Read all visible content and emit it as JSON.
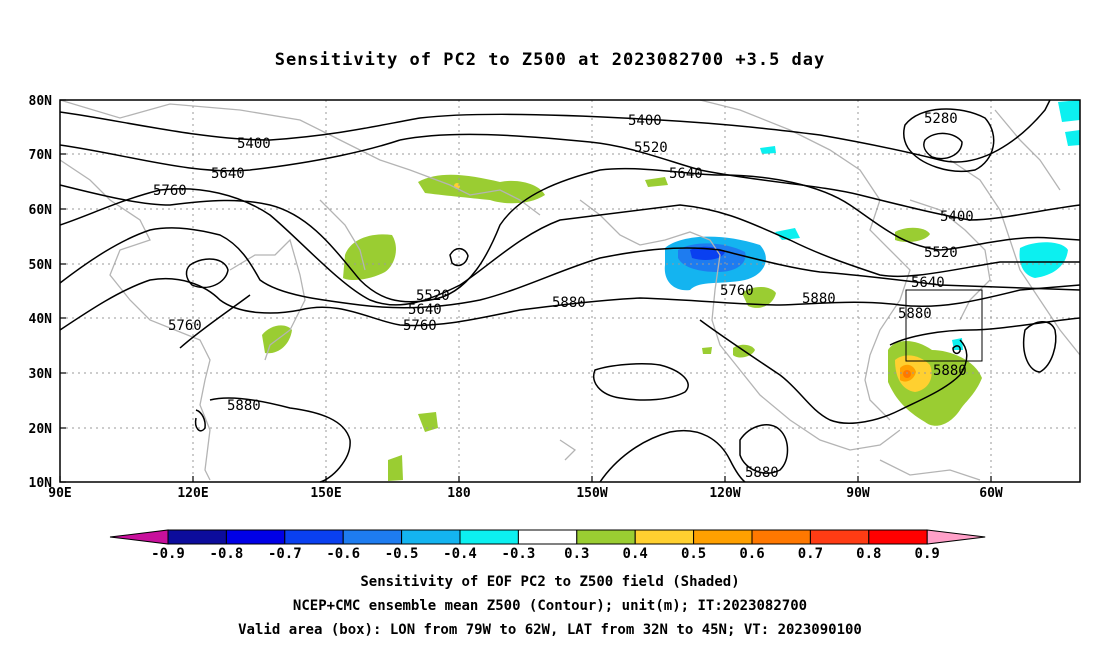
{
  "title": "Sensitivity of PC2 to Z500 at 2023082700 +3.5 day",
  "lat_labels": [
    "80N",
    "70N",
    "60N",
    "50N",
    "40N",
    "30N",
    "20N",
    "10N"
  ],
  "lon_labels": [
    "90E",
    "120E",
    "150E",
    "180",
    "150W",
    "120W",
    "90W",
    "60W"
  ],
  "contour_labels": [
    "5400",
    "5280",
    "5400",
    "5520",
    "5400",
    "5640",
    "5520",
    "5760",
    "5640",
    "5640",
    "5520",
    "5880",
    "5640",
    "5760",
    "5880",
    "5760",
    "5760",
    "5880",
    "5880",
    "5880"
  ],
  "colorbar": {
    "labels": [
      "-0.9",
      "-0.8",
      "-0.7",
      "-0.6",
      "-0.5",
      "-0.4",
      "-0.3",
      "0.3",
      "0.4",
      "0.5",
      "0.6",
      "0.7",
      "0.8",
      "0.9"
    ],
    "colors": [
      "#c8109c",
      "#0c0c9c",
      "#0000e6",
      "#0a40f0",
      "#1e7cf0",
      "#14b4f0",
      "#0cf0f0",
      "#ffffff",
      "#9acd32",
      "#ffd030",
      "#ffa000",
      "#ff7800",
      "#ff3c14",
      "#ff0000",
      "#ffa0c8"
    ]
  },
  "captions": [
    "Sensitivity of EOF PC2 to Z500 field (Shaded)",
    "NCEP+CMC ensemble mean Z500 (Contour); unit(m); IT:2023082700",
    "Valid area (box): LON from 79W to 62W, LAT from 32N to 45N; VT: 2023090100"
  ]
}
